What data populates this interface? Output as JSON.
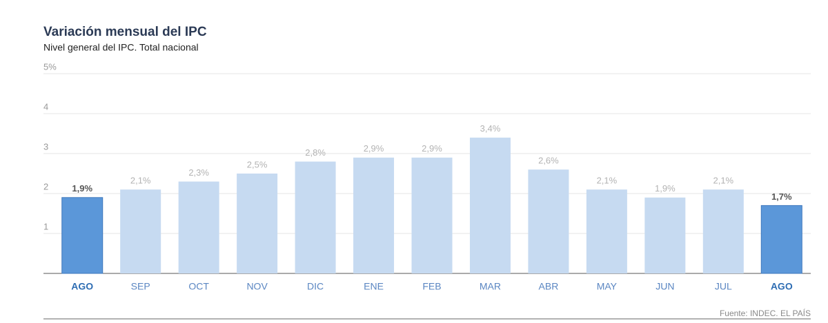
{
  "chart_data": {
    "type": "bar",
    "title": "Variación mensual del IPC",
    "subtitle": "Nivel general del IPC. Total nacional",
    "categories": [
      "AGO",
      "SEP",
      "OCT",
      "NOV",
      "DIC",
      "ENE",
      "FEB",
      "MAR",
      "ABR",
      "MAY",
      "JUN",
      "JUL",
      "AGO"
    ],
    "values": [
      1.9,
      2.1,
      2.3,
      2.5,
      2.8,
      2.9,
      2.9,
      3.4,
      2.6,
      2.1,
      1.9,
      2.1,
      1.7
    ],
    "value_labels": [
      "1,9%",
      "2,1%",
      "2,3%",
      "2,5%",
      "2,8%",
      "2,9%",
      "2,9%",
      "3,4%",
      "2,6%",
      "2,1%",
      "1,9%",
      "2,1%",
      "1,7%"
    ],
    "colors": [
      "#5b97d9",
      "#c6daf1",
      "#c6daf1",
      "#c6daf1",
      "#c6daf1",
      "#c6daf1",
      "#c6daf1",
      "#c6daf1",
      "#c6daf1",
      "#c6daf1",
      "#c6daf1",
      "#c6daf1",
      "#5b97d9"
    ],
    "highlight_color": "#5b97d9",
    "ylim": [
      0,
      5
    ],
    "yticks": [
      1,
      2,
      3,
      4,
      {
        "value": 5,
        "label": "5%"
      }
    ],
    "grid": true,
    "source": "Fuente: INDEC. EL PAÍS"
  }
}
